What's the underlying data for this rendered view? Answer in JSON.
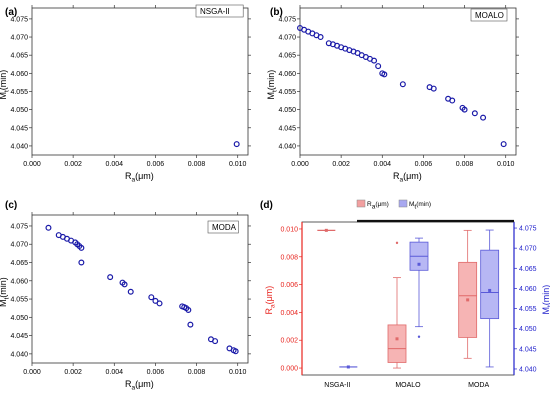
{
  "chart_data": [
    {
      "panel_label": "(a)",
      "type": "scatter",
      "legend_text": "NSGA-II",
      "xlabel_main": "R",
      "xlabel_sub": "a",
      "xlabel_unit": "(μm)",
      "ylabel_main": "M",
      "ylabel_sub": "t",
      "ylabel_unit": "(min)",
      "xlim": [
        0,
        0.0105
      ],
      "ylim": [
        4.0375,
        4.078
      ],
      "xticks": [
        "0.000",
        "0.002",
        "0.004",
        "0.006",
        "0.008",
        "0.010"
      ],
      "yticks": [
        "4.040",
        "4.045",
        "4.050",
        "4.055",
        "4.060",
        "4.065",
        "4.070",
        "4.075"
      ],
      "point_color": "#1a1aa8",
      "points": [
        [
          0.00995,
          4.0405
        ]
      ]
    },
    {
      "panel_label": "(b)",
      "type": "scatter",
      "legend_text": "MOALO",
      "xlabel_main": "R",
      "xlabel_sub": "a",
      "xlabel_unit": "(μm)",
      "ylabel_main": "M",
      "ylabel_sub": "t",
      "ylabel_unit": "(min)",
      "xlim": [
        0,
        0.0105
      ],
      "ylim": [
        4.0375,
        4.078
      ],
      "xticks": [
        "0.000",
        "0.002",
        "0.004",
        "0.006",
        "0.008",
        "0.010"
      ],
      "yticks": [
        "4.040",
        "4.045",
        "4.050",
        "4.055",
        "4.060",
        "4.065",
        "4.070",
        "4.075"
      ],
      "point_color": "#1a1aa8",
      "points": [
        [
          0.0,
          4.0725
        ],
        [
          0.0002,
          4.072
        ],
        [
          0.0004,
          4.0715
        ],
        [
          0.0006,
          4.071
        ],
        [
          0.0008,
          4.0705
        ],
        [
          0.001,
          4.07
        ],
        [
          0.0014,
          4.0683
        ],
        [
          0.0016,
          4.068
        ],
        [
          0.0018,
          4.0676
        ],
        [
          0.002,
          4.0672
        ],
        [
          0.0022,
          4.0668
        ],
        [
          0.0024,
          4.0664
        ],
        [
          0.0026,
          4.066
        ],
        [
          0.0028,
          4.0656
        ],
        [
          0.003,
          4.065
        ],
        [
          0.0032,
          4.0645
        ],
        [
          0.0034,
          4.064
        ],
        [
          0.0036,
          4.0635
        ],
        [
          0.0038,
          4.062
        ],
        [
          0.004,
          4.06
        ],
        [
          0.0041,
          4.0597
        ],
        [
          0.005,
          4.057
        ],
        [
          0.0063,
          4.0562
        ],
        [
          0.0065,
          4.0558
        ],
        [
          0.0072,
          4.053
        ],
        [
          0.0074,
          4.0525
        ],
        [
          0.0079,
          4.0505
        ],
        [
          0.008,
          4.05
        ],
        [
          0.0085,
          4.049
        ],
        [
          0.0089,
          4.0478
        ],
        [
          0.0099,
          4.0405
        ]
      ]
    },
    {
      "panel_label": "(c)",
      "type": "scatter",
      "legend_text": "MODA",
      "xlabel_main": "R",
      "xlabel_sub": "a",
      "xlabel_unit": "(μm)",
      "ylabel_main": "M",
      "ylabel_sub": "t",
      "ylabel_unit": "(min)",
      "xlim": [
        0,
        0.0105
      ],
      "ylim": [
        4.0375,
        4.078
      ],
      "xticks": [
        "0.000",
        "0.002",
        "0.004",
        "0.006",
        "0.008",
        "0.010"
      ],
      "yticks": [
        "4.040",
        "4.045",
        "4.050",
        "4.055",
        "4.060",
        "4.065",
        "4.070",
        "4.075"
      ],
      "point_color": "#1a1aa8",
      "points": [
        [
          0.0008,
          4.0745
        ],
        [
          0.0013,
          4.0725
        ],
        [
          0.0015,
          4.072
        ],
        [
          0.0017,
          4.0715
        ],
        [
          0.0019,
          4.071
        ],
        [
          0.0021,
          4.0705
        ],
        [
          0.0022,
          4.07
        ],
        [
          0.0023,
          4.0695
        ],
        [
          0.0024,
          4.069
        ],
        [
          0.0024,
          4.065
        ],
        [
          0.0038,
          4.061
        ],
        [
          0.0044,
          4.0595
        ],
        [
          0.0045,
          4.059
        ],
        [
          0.0048,
          4.057
        ],
        [
          0.0058,
          4.0555
        ],
        [
          0.006,
          4.0545
        ],
        [
          0.0062,
          4.0538
        ],
        [
          0.0073,
          4.053
        ],
        [
          0.0074,
          4.0528
        ],
        [
          0.0075,
          4.0525
        ],
        [
          0.0076,
          4.052
        ],
        [
          0.0077,
          4.048
        ],
        [
          0.0087,
          4.044
        ],
        [
          0.0089,
          4.0435
        ],
        [
          0.0096,
          4.0415
        ],
        [
          0.0098,
          4.041
        ],
        [
          0.0099,
          4.0407
        ]
      ]
    },
    {
      "panel_label": "(d)",
      "type": "box",
      "categories": [
        "NSGA-II",
        "MOALO",
        "MODA"
      ],
      "legend": [
        {
          "main": "R",
          "sub": "a",
          "unit": "(μm)",
          "color": "#f2a0a0"
        },
        {
          "main": "M",
          "sub": "t",
          "unit": "(min)",
          "color": "#a8a8f0"
        }
      ],
      "ylabel_left_main": "R",
      "ylabel_left_sub": "a",
      "ylabel_left_unit": "(μm)",
      "ylabel_right_main": "M",
      "ylabel_right_sub": "t",
      "ylabel_right_unit": "(min)",
      "ylim_left": [
        -0.0005,
        0.0105
      ],
      "ylim_right": [
        4.0385,
        4.0765
      ],
      "yticks_left": [
        "0.000",
        "0.002",
        "0.004",
        "0.006",
        "0.008",
        "0.010"
      ],
      "yticks_right": [
        "4.040",
        "4.045",
        "4.050",
        "4.055",
        "4.060",
        "4.065",
        "4.070",
        "4.075"
      ],
      "left_color": "#e8251f",
      "right_color": "#2222cc",
      "series": [
        {
          "name": "Ra",
          "boxes": [
            {
              "category": "NSGA-II",
              "min": 0.0099,
              "q1": 0.0099,
              "median": 0.0099,
              "q3": 0.0099,
              "max": 0.0099,
              "mean": 0.0099
            },
            {
              "category": "MOALO",
              "min": 0.0,
              "q1": 0.0004,
              "median": 0.0014,
              "q3": 0.0031,
              "max": 0.0065,
              "mean": 0.0021,
              "outliers": [
                0.009
              ]
            },
            {
              "category": "MODA",
              "min": 0.0007,
              "q1": 0.0022,
              "median": 0.0052,
              "q3": 0.0076,
              "max": 0.0099,
              "mean": 0.0049
            }
          ]
        },
        {
          "name": "Mt",
          "boxes": [
            {
              "category": "NSGA-II",
              "min": 4.0405,
              "q1": 4.0405,
              "median": 4.0405,
              "q3": 4.0405,
              "max": 4.0405,
              "mean": 4.0405
            },
            {
              "category": "MOALO",
              "min": 4.0505,
              "q1": 4.0645,
              "median": 4.068,
              "q3": 4.0715,
              "max": 4.0725,
              "mean": 4.066,
              "outliers": [
                4.048
              ]
            },
            {
              "category": "MODA",
              "min": 4.0405,
              "q1": 4.0525,
              "median": 4.059,
              "q3": 4.0695,
              "max": 4.0745,
              "mean": 4.0595
            }
          ]
        }
      ]
    }
  ]
}
